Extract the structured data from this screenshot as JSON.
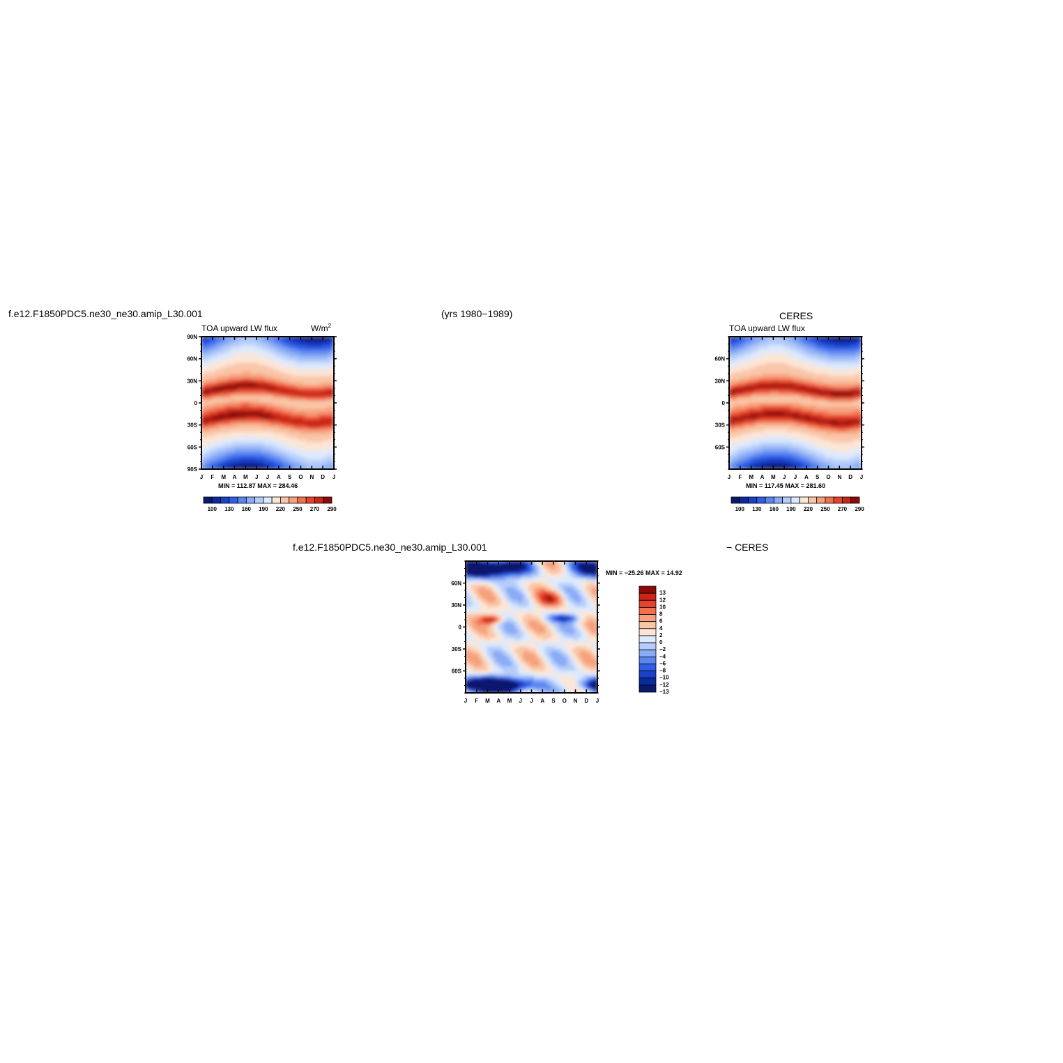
{
  "header": {
    "case_name": "f.e12.F1850PDC5.ne30_ne30.amip_L30.001",
    "years": "(yrs 1980−1989)",
    "obs_name": "CERES",
    "diff_case": "f.e12.F1850PDC5.ne30_ne30.amip_L30.001",
    "diff_obs": "− CERES"
  },
  "chart_data": [
    {
      "id": "model",
      "type": "heatmap",
      "title": "TOA upward LW flux",
      "units": "W/m",
      "units_sup": "2",
      "x_ticks": [
        "J",
        "F",
        "M",
        "A",
        "M",
        "J",
        "J",
        "A",
        "S",
        "O",
        "N",
        "D",
        "J"
      ],
      "y_ticks": [
        "90N",
        "60N",
        "30N",
        "0",
        "30S",
        "60S",
        "90S"
      ],
      "ylim": [
        -90,
        90
      ],
      "stats": "MIN = 112.87  MAX = 284.46",
      "colorbar_labels": [
        "100",
        "130",
        "160",
        "190",
        "220",
        "250",
        "270",
        "290"
      ],
      "levels": [
        100,
        115,
        130,
        145,
        160,
        175,
        190,
        205,
        220,
        235,
        250,
        260,
        270,
        280,
        290
      ]
    },
    {
      "id": "obs",
      "type": "heatmap",
      "title": "TOA upward LW flux",
      "x_ticks": [
        "J",
        "F",
        "M",
        "A",
        "M",
        "J",
        "J",
        "A",
        "S",
        "O",
        "N",
        "D",
        "J"
      ],
      "y_ticks": [
        "60N",
        "30N",
        "0",
        "30S",
        "60S"
      ],
      "ylim": [
        -90,
        90
      ],
      "stats": "MIN = 117.45  MAX = 281.60",
      "colorbar_labels": [
        "100",
        "130",
        "160",
        "190",
        "220",
        "250",
        "270",
        "290"
      ],
      "levels": [
        100,
        115,
        130,
        145,
        160,
        175,
        190,
        205,
        220,
        235,
        250,
        260,
        270,
        280,
        290
      ]
    },
    {
      "id": "diff",
      "type": "heatmap",
      "x_ticks": [
        "J",
        "F",
        "M",
        "A",
        "M",
        "J",
        "J",
        "A",
        "S",
        "O",
        "N",
        "D",
        "J"
      ],
      "y_ticks": [
        "60N",
        "30N",
        "0",
        "30S",
        "60S"
      ],
      "ylim": [
        -90,
        90
      ],
      "stats": "MIN =  −25.26  MAX =   14.92",
      "colorbar_labels": [
        "13",
        "12",
        "10",
        "8",
        "6",
        "4",
        "2",
        "0",
        "−2",
        "−4",
        "−6",
        "−8",
        "−10",
        "−12",
        "−13"
      ],
      "levels": [
        -13,
        -12,
        -10,
        -8,
        -6,
        -4,
        -2,
        0,
        2,
        4,
        6,
        8,
        10,
        12,
        13
      ]
    }
  ],
  "palette": [
    "#08196e",
    "#0a2aa0",
    "#1a40cc",
    "#2f5ee8",
    "#5b86f0",
    "#8aacf6",
    "#b6cdfa",
    "#dde9fd",
    "#fbe6d6",
    "#f9c6a8",
    "#f7a07c",
    "#f2704f",
    "#e8432a",
    "#c82617",
    "#8c0a0a"
  ]
}
